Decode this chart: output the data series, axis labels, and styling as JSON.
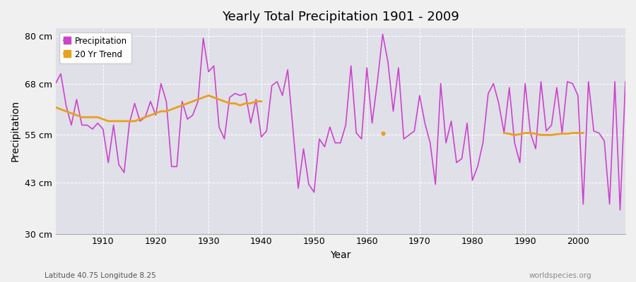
{
  "title": "Yearly Total Precipitation 1901 - 2009",
  "xlabel": "Year",
  "ylabel": "Precipitation",
  "lat_lon_label": "Latitude 40.75 Longitude 8.25",
  "source_label": "worldspecies.org",
  "ylim": [
    30,
    82
  ],
  "yticks": [
    30,
    43,
    55,
    68,
    80
  ],
  "ytick_labels": [
    "30 cm",
    "43 cm",
    "55 cm",
    "68 cm",
    "80 cm"
  ],
  "precipitation_color": "#cc44cc",
  "trend_color": "#e8a020",
  "background_color": "#f0f0f0",
  "plot_bg_color": "#e0e0e8",
  "grid_color": "#ffffff",
  "years": [
    1901,
    1902,
    1903,
    1904,
    1905,
    1906,
    1907,
    1908,
    1909,
    1910,
    1911,
    1912,
    1913,
    1914,
    1915,
    1916,
    1917,
    1918,
    1919,
    1920,
    1921,
    1922,
    1923,
    1924,
    1925,
    1926,
    1927,
    1928,
    1929,
    1930,
    1931,
    1932,
    1933,
    1934,
    1935,
    1936,
    1937,
    1938,
    1939,
    1940,
    1941,
    1942,
    1943,
    1944,
    1945,
    1946,
    1947,
    1948,
    1949,
    1950,
    1951,
    1952,
    1953,
    1954,
    1955,
    1956,
    1957,
    1958,
    1959,
    1960,
    1961,
    1962,
    1963,
    1964,
    1965,
    1966,
    1967,
    1968,
    1969,
    1970,
    1971,
    1972,
    1973,
    1974,
    1975,
    1976,
    1977,
    1978,
    1979,
    1980,
    1981,
    1982,
    1983,
    1984,
    1985,
    1986,
    1987,
    1988,
    1989,
    1990,
    1991,
    1992,
    1993,
    1994,
    1995,
    1996,
    1997,
    1998,
    1999,
    2000,
    2001,
    2002,
    2003,
    2004,
    2005,
    2006,
    2007,
    2008,
    2009
  ],
  "precip_values": [
    68.0,
    70.5,
    62.5,
    57.5,
    64.0,
    57.5,
    57.5,
    56.5,
    58.0,
    56.5,
    48.0,
    57.5,
    47.5,
    45.5,
    58.0,
    63.0,
    58.5,
    59.5,
    63.5,
    60.0,
    68.0,
    63.5,
    47.0,
    47.0,
    63.5,
    59.0,
    60.0,
    63.5,
    79.5,
    71.0,
    72.5,
    57.0,
    54.0,
    64.5,
    65.5,
    65.0,
    65.5,
    58.0,
    64.0,
    54.5,
    56.0,
    67.5,
    68.5,
    65.0,
    71.5,
    56.5,
    41.5,
    51.5,
    42.5,
    40.5,
    54.0,
    52.0,
    57.0,
    53.0,
    53.0,
    57.5,
    72.5,
    55.5,
    54.0,
    72.0,
    58.0,
    68.5,
    80.5,
    73.5,
    61.0,
    72.0,
    54.0,
    55.0,
    56.0,
    65.0,
    58.0,
    53.0,
    42.5,
    68.0,
    53.0,
    58.5,
    48.0,
    49.0,
    58.0,
    43.5,
    47.0,
    53.0,
    65.5,
    68.0,
    63.0,
    55.5,
    67.0,
    53.0,
    48.0,
    68.0,
    55.5,
    51.5,
    68.5,
    56.0,
    57.5,
    67.0,
    55.5,
    68.5,
    68.0,
    65.0,
    37.5,
    68.5,
    56.0,
    55.5,
    53.5,
    37.5,
    68.5,
    36.0,
    68.5
  ],
  "trend_seg1_years": [
    1901,
    1902,
    1903,
    1904,
    1905,
    1906,
    1907,
    1908,
    1909,
    1910,
    1911,
    1912,
    1913,
    1914,
    1915,
    1916,
    1917,
    1918,
    1919,
    1920,
    1921,
    1922,
    1923,
    1924,
    1925,
    1926,
    1927,
    1928,
    1929,
    1930,
    1931,
    1932,
    1933,
    1934,
    1935,
    1936,
    1937,
    1938,
    1939,
    1940
  ],
  "trend_seg1_values": [
    62.0,
    61.5,
    61.0,
    60.5,
    60.0,
    59.5,
    59.5,
    59.5,
    59.5,
    59.0,
    58.5,
    58.5,
    58.5,
    58.5,
    58.5,
    58.5,
    59.0,
    59.5,
    60.0,
    60.5,
    61.0,
    61.0,
    61.5,
    62.0,
    62.5,
    63.0,
    63.5,
    64.0,
    64.5,
    65.0,
    64.5,
    64.0,
    63.5,
    63.0,
    63.0,
    62.5,
    63.0,
    63.0,
    63.5,
    63.5
  ],
  "trend_dot_year": 1963,
  "trend_dot_value": 55.5,
  "trend_seg2_years": [
    1986,
    1987,
    1988,
    1989,
    1990,
    1991,
    1992,
    1993,
    1994,
    1995,
    1996,
    1997,
    1998,
    1999,
    2000,
    2001
  ],
  "trend_seg2_values": [
    55.5,
    55.3,
    55.0,
    55.2,
    55.5,
    55.5,
    55.3,
    55.0,
    55.0,
    55.0,
    55.2,
    55.3,
    55.3,
    55.5,
    55.5,
    55.5
  ]
}
